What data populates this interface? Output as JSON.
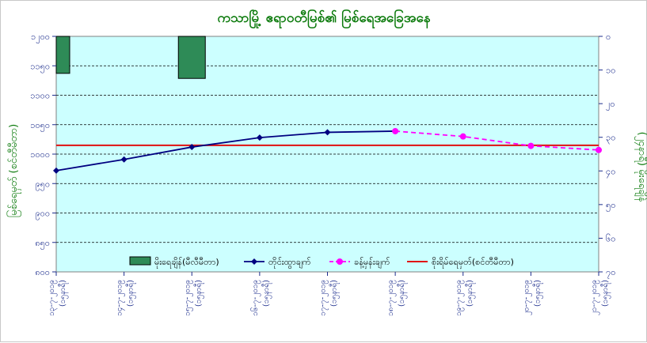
{
  "chart_data": {
    "type": "line",
    "title": "ကသာမြို့ ဧရာဝတီမြစ်၏ မြစ်ရေအခြေအနေ",
    "ylabel_left": "မြစ်ရေမှတ် (စင်တီမီတာ)",
    "ylabel_right": "(၂၄နာရီ) မိုးရေချိန်",
    "ylim_left": [
      800,
      1200
    ],
    "yticks_left": [
      "၁၂၀၀",
      "၁၁၅၀",
      "၁၁၀၀",
      "၁၀၅၀",
      "၁၀၀၀",
      "၉၅၀",
      "၉၀၀",
      "၈၅၀",
      "၈၀၀"
    ],
    "ylim_right": [
      0,
      70
    ],
    "right_inverted": true,
    "yticks_right": [
      "၀",
      "၁၀",
      "၂၀",
      "၃၀",
      "၄၀",
      "၅၀",
      "၆၀",
      "၇၀"
    ],
    "categories": [
      "၁၃-၇-၂၀၁၉ (၁၅နာရီ)",
      "၁၄-၇-၂၀၁၉ (၁၅နာရီ)",
      "၁၅-၇-၂၀၁၉ (၁၅နာရီ)",
      "၁၆-၇-၂၀၁၉ (၁၅နာရီ)",
      "၁၇-၇-၂၀၁၉ (၁၅နာရီ)",
      "၁၈-၇-၂၀၁၉ (၁၅နာရီ)",
      "၁၉-၇-၂၀၁၉ (၁၅နာရီ)",
      "၂၀-၇-၂၀၁၉ (၁၅နာရီ)",
      "၂၁-၇-၂၀၁၉ (၁၅နာရီ)"
    ],
    "series": [
      {
        "name": "မိုးရေချိန်(မီလီမီတာ)",
        "kind": "bar",
        "axis": "right",
        "values": [
          11,
          0,
          12.5,
          0,
          0,
          0,
          0,
          0,
          0
        ],
        "color": "#2e8b57"
      },
      {
        "name": "တိုင်းထွာချက်",
        "kind": "line",
        "axis": "left",
        "values": [
          972,
          991,
          1012,
          1028,
          1037,
          1039,
          null,
          null,
          null
        ],
        "color": "#000080"
      },
      {
        "name": "ခန့်မှန်းချက်",
        "kind": "line-dashed",
        "axis": "left",
        "values": [
          null,
          null,
          null,
          null,
          null,
          1039,
          1030,
          1014,
          1007
        ],
        "color": "#ff00ff"
      },
      {
        "name": "စိုးရိမ်ရေမှတ်(စင်တီမီတာ)",
        "kind": "hline",
        "axis": "left",
        "value": 1015,
        "color": "#e01010"
      }
    ],
    "grid": true,
    "legend_position": "bottom"
  }
}
